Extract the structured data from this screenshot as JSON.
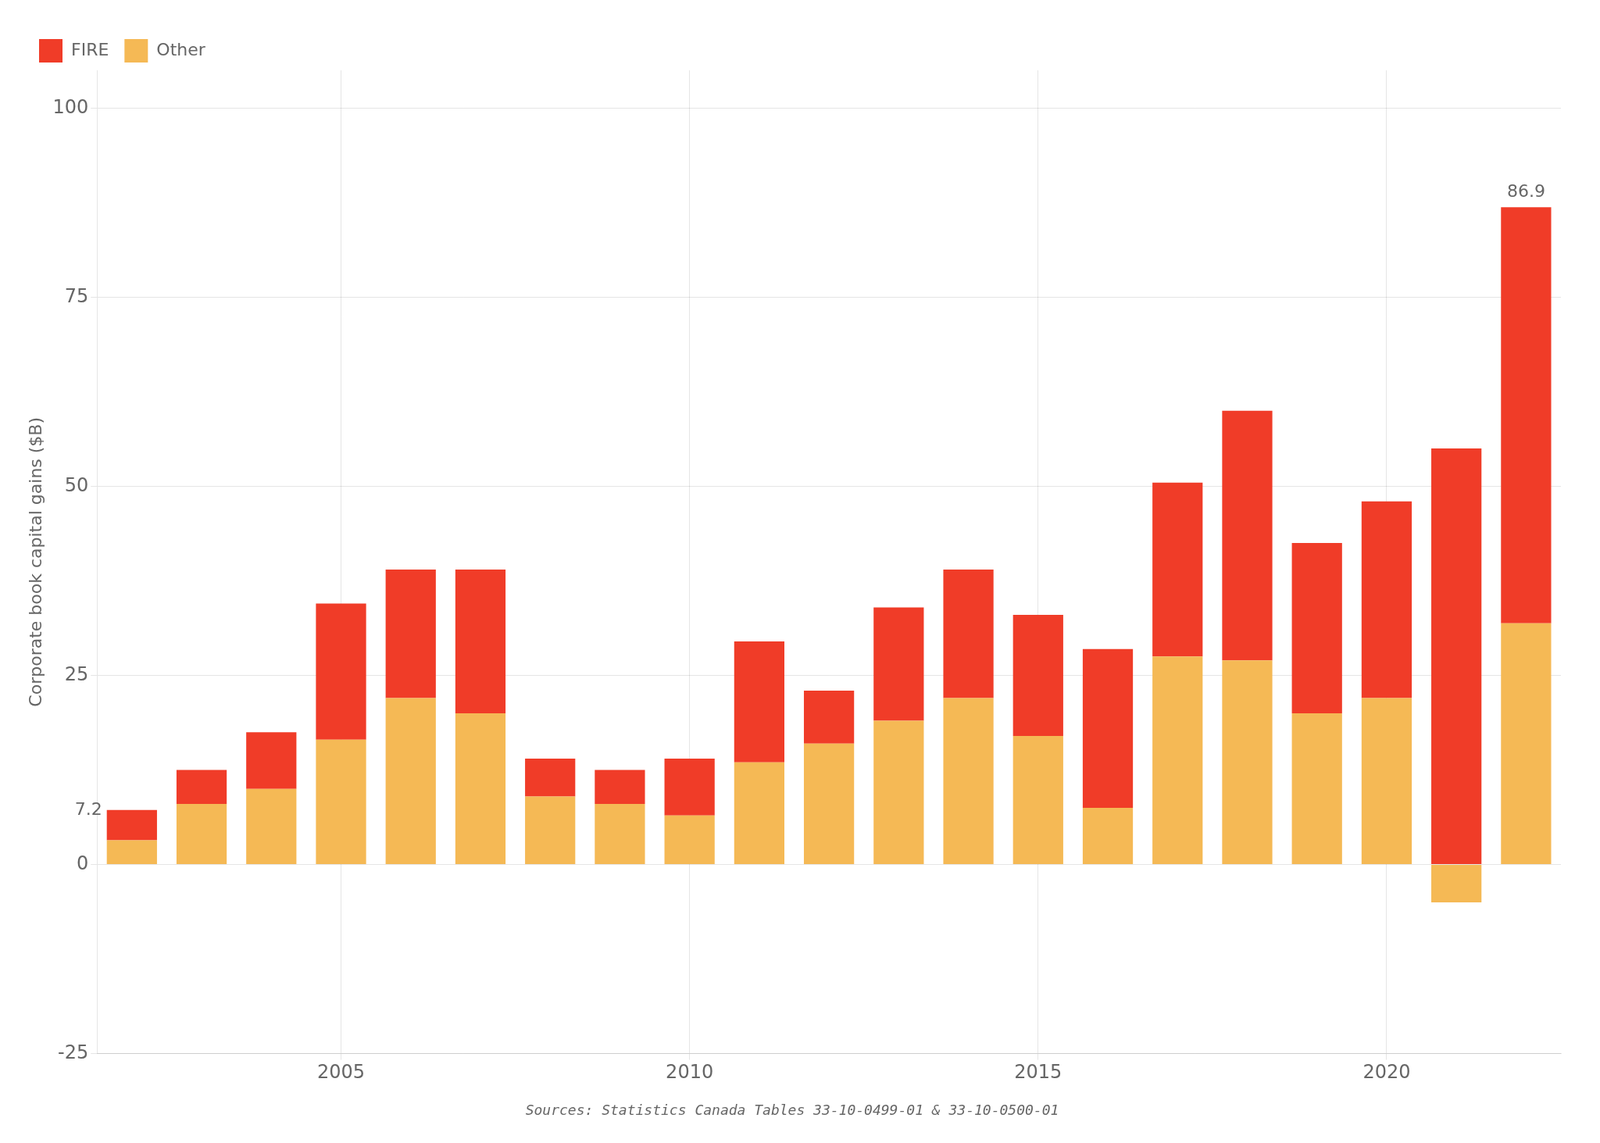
{
  "chart_data": {
    "type": "bar",
    "categories": [
      null,
      null,
      null,
      "2005",
      null,
      null,
      null,
      null,
      "2010",
      null,
      null,
      null,
      null,
      "2015",
      null,
      null,
      null,
      null,
      "2020",
      null,
      null
    ],
    "series": [
      {
        "name": "Other",
        "color": "#f5b955",
        "values": [
          3.2,
          8.0,
          10.0,
          16.5,
          22.0,
          20.0,
          9.0,
          8.0,
          6.5,
          13.5,
          16.0,
          19.0,
          22.0,
          17.0,
          7.5,
          27.5,
          27.0,
          20.0,
          22.0,
          -5.0,
          31.9
        ]
      },
      {
        "name": "FIRE",
        "color": "#f03c28",
        "values": [
          4.0,
          4.5,
          7.5,
          18.0,
          17.0,
          19.0,
          5.0,
          4.5,
          7.5,
          16.0,
          7.0,
          15.0,
          17.0,
          16.0,
          21.0,
          23.0,
          33.0,
          22.5,
          26.0,
          55.0,
          55.0
        ]
      }
    ],
    "stacked": true,
    "ylabel": "Corporate book capital gains ($B)",
    "ylim": [
      -25,
      105
    ],
    "yticks": [
      -25,
      0,
      25,
      50,
      75,
      100
    ],
    "grid": true,
    "legend": "upper left",
    "annotations": [
      {
        "text": "7.2"
      },
      {
        "text": "86.9"
      }
    ],
    "source": "Sources: Statistics Canada Tables 33-10-0499-01 & 33-10-0500-01"
  }
}
